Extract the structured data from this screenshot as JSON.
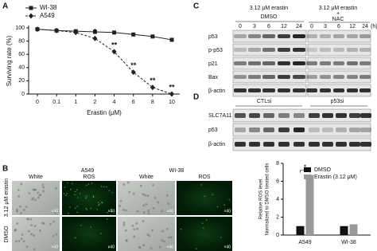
{
  "panel_labels": [
    "A",
    "B",
    "C",
    "D"
  ],
  "chart_data": [
    {
      "type": "line",
      "x_label": "Erastin (μM)",
      "y_label": "Surviving rate (%)",
      "categories": [
        0,
        0.1,
        1,
        2,
        4,
        6,
        8,
        10
      ],
      "series": [
        {
          "name": "WI-38",
          "color": "#222222",
          "marker": "square",
          "line_style": "solid",
          "values": [
            98,
            96,
            95,
            94,
            93,
            90,
            87,
            82
          ]
        },
        {
          "name": "A549",
          "color": "#222222",
          "marker": "diamond",
          "line_style": "dashed",
          "values": [
            98,
            96,
            93,
            84,
            64,
            33,
            10,
            0
          ]
        }
      ],
      "annotations": [
        {
          "text": "*",
          "at": 2
        },
        {
          "text": "**",
          "at": 4
        },
        {
          "text": "**",
          "at": 6
        },
        {
          "text": "**",
          "at": 8
        },
        {
          "text": "**",
          "at": 10
        }
      ],
      "ylim": [
        0,
        100
      ],
      "yticks": [
        0,
        20,
        40,
        60,
        80,
        100
      ],
      "legend": "top-left"
    },
    {
      "type": "bar",
      "y_label": [
        "Relative ROS level",
        "Normalized to DMSO treated cells"
      ],
      "categories": [
        "A549",
        "WI-38"
      ],
      "series": [
        {
          "name": "DMSO",
          "color": "#111111",
          "values": [
            1.0,
            1.0
          ]
        },
        {
          "name": "Erastin (3.12 μM)",
          "color": "#999999",
          "values": [
            6.7,
            1.2
          ]
        }
      ],
      "annotations": [
        {
          "text": "*",
          "category": "A549"
        }
      ],
      "ylim": [
        0,
        8
      ],
      "yticks": [
        0,
        2,
        4,
        6,
        8
      ],
      "legend": "top"
    }
  ],
  "microscopy": {
    "cell_lines": [
      "A549",
      "WI-38"
    ],
    "channels": [
      "White",
      "ROS"
    ],
    "rows": [
      "3.12 μM erastin",
      "DMSO"
    ],
    "magnification": "×40"
  },
  "blot_c": {
    "headers": [
      "3.12 μM erastin",
      "3.12 μM erastin"
    ],
    "conditions": [
      "DMSO",
      "NAC"
    ],
    "plus": "+",
    "times": [
      "0",
      "3",
      "6",
      "12",
      "24"
    ],
    "unit": "(h)",
    "rows": [
      "p53",
      "p-p53",
      "p21",
      "Bax",
      "β-actin"
    ]
  },
  "blot_d": {
    "groups": [
      "CTLsi",
      "p53si"
    ],
    "rows": [
      "SLC7A11",
      "p53",
      "β-actin"
    ]
  }
}
